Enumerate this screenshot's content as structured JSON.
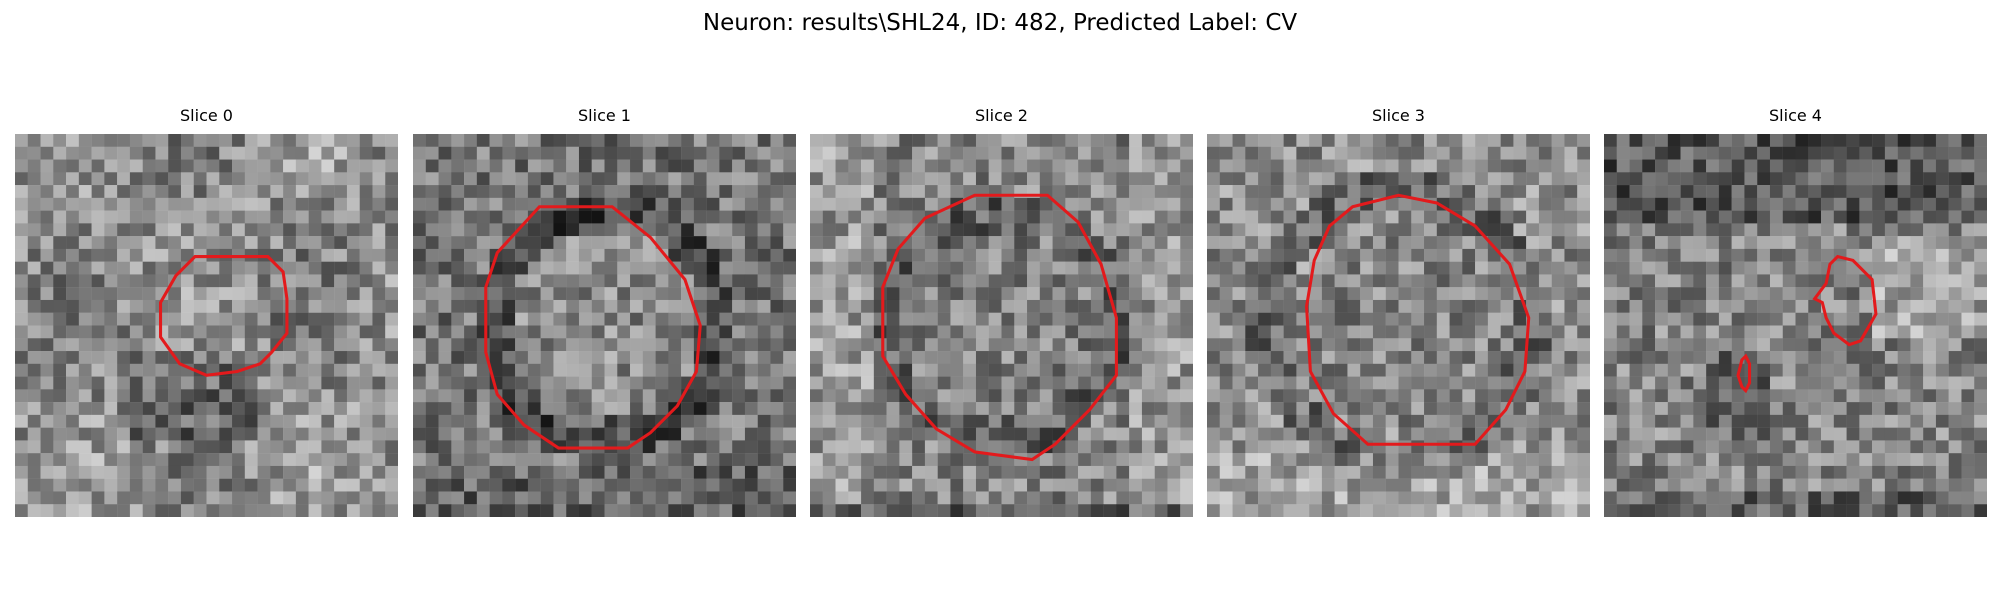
{
  "figure": {
    "title": "Neuron: results\\SHL24, ID: 482, Predicted Label: CV",
    "contour_color": "#e31a1c",
    "colormap": "gray"
  },
  "panels": [
    {
      "title": "Slice 0",
      "image_icon": "grayscale-noise-patch",
      "contours": [
        [
          [
            0.47,
            0.32
          ],
          [
            0.66,
            0.32
          ],
          [
            0.7,
            0.36
          ],
          [
            0.71,
            0.43
          ],
          [
            0.71,
            0.52
          ],
          [
            0.67,
            0.57
          ],
          [
            0.64,
            0.6
          ],
          [
            0.58,
            0.62
          ],
          [
            0.5,
            0.63
          ],
          [
            0.43,
            0.6
          ],
          [
            0.38,
            0.53
          ],
          [
            0.38,
            0.44
          ],
          [
            0.42,
            0.37
          ]
        ]
      ]
    },
    {
      "title": "Slice 1",
      "image_icon": "grayscale-noise-patch",
      "contours": [
        [
          [
            0.33,
            0.19
          ],
          [
            0.52,
            0.19
          ],
          [
            0.62,
            0.27
          ],
          [
            0.71,
            0.38
          ],
          [
            0.75,
            0.5
          ],
          [
            0.74,
            0.62
          ],
          [
            0.69,
            0.71
          ],
          [
            0.62,
            0.78
          ],
          [
            0.56,
            0.82
          ],
          [
            0.38,
            0.82
          ],
          [
            0.29,
            0.76
          ],
          [
            0.22,
            0.68
          ],
          [
            0.19,
            0.57
          ],
          [
            0.19,
            0.4
          ],
          [
            0.22,
            0.31
          ]
        ]
      ]
    },
    {
      "title": "Slice 2",
      "image_icon": "grayscale-noise-patch",
      "contours": [
        [
          [
            0.43,
            0.16
          ],
          [
            0.62,
            0.16
          ],
          [
            0.7,
            0.23
          ],
          [
            0.76,
            0.34
          ],
          [
            0.8,
            0.48
          ],
          [
            0.8,
            0.63
          ],
          [
            0.73,
            0.72
          ],
          [
            0.64,
            0.81
          ],
          [
            0.58,
            0.85
          ],
          [
            0.43,
            0.83
          ],
          [
            0.33,
            0.77
          ],
          [
            0.25,
            0.68
          ],
          [
            0.19,
            0.58
          ],
          [
            0.19,
            0.4
          ],
          [
            0.23,
            0.3
          ],
          [
            0.3,
            0.22
          ]
        ]
      ]
    },
    {
      "title": "Slice 3",
      "image_icon": "grayscale-noise-patch",
      "contours": [
        [
          [
            0.38,
            0.19
          ],
          [
            0.5,
            0.16
          ],
          [
            0.6,
            0.18
          ],
          [
            0.7,
            0.24
          ],
          [
            0.79,
            0.34
          ],
          [
            0.84,
            0.48
          ],
          [
            0.83,
            0.62
          ],
          [
            0.78,
            0.72
          ],
          [
            0.7,
            0.81
          ],
          [
            0.42,
            0.81
          ],
          [
            0.33,
            0.73
          ],
          [
            0.27,
            0.62
          ],
          [
            0.26,
            0.45
          ],
          [
            0.28,
            0.33
          ],
          [
            0.32,
            0.24
          ]
        ]
      ]
    },
    {
      "title": "Slice 4",
      "image_icon": "grayscale-noise-patch",
      "contours": [
        [
          [
            0.59,
            0.34
          ],
          [
            0.61,
            0.32
          ],
          [
            0.65,
            0.33
          ],
          [
            0.7,
            0.38
          ],
          [
            0.71,
            0.47
          ],
          [
            0.67,
            0.54
          ],
          [
            0.64,
            0.55
          ],
          [
            0.6,
            0.52
          ],
          [
            0.58,
            0.48
          ],
          [
            0.57,
            0.44
          ],
          [
            0.55,
            0.43
          ],
          [
            0.58,
            0.39
          ]
        ],
        [
          [
            0.36,
            0.59
          ],
          [
            0.37,
            0.58
          ],
          [
            0.38,
            0.6
          ],
          [
            0.38,
            0.65
          ],
          [
            0.37,
            0.67
          ],
          [
            0.36,
            0.66
          ],
          [
            0.35,
            0.63
          ]
        ]
      ]
    }
  ]
}
